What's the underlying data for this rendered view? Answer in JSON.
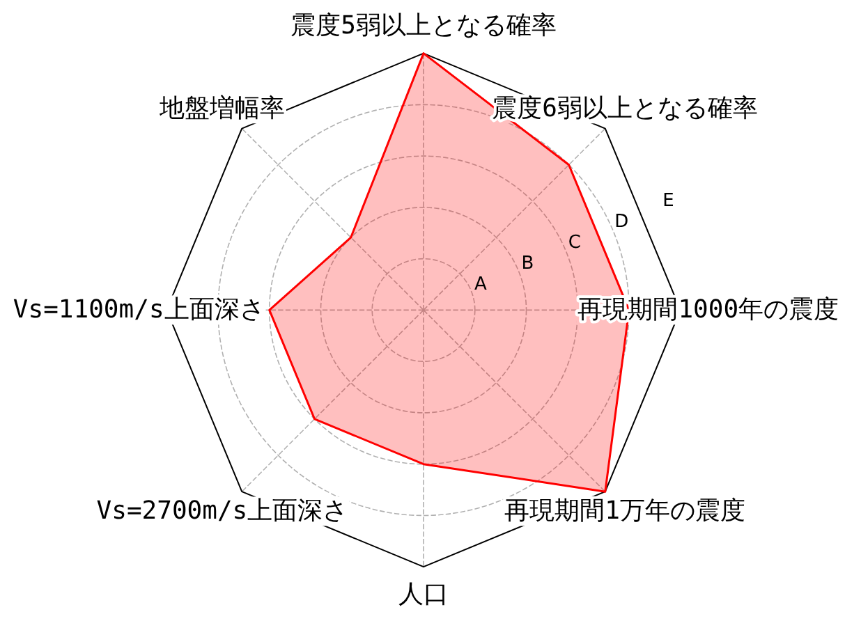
{
  "chart_data": {
    "type": "radar",
    "categories": [
      "震度5弱以上となる確率",
      "震度6弱以上となる確率",
      "再現期間1000年の震度",
      "再現期間1万年の震度",
      "人口",
      "Vs=2700m/s上面深さ",
      "Vs=1100m/s上面深さ",
      "地盤増幅率"
    ],
    "series": [
      {
        "color": "#ff0000",
        "values": [
          5,
          4,
          4,
          5,
          3,
          3,
          3,
          2
        ]
      }
    ],
    "ylim": [
      0,
      5
    ],
    "yticks": [
      {
        "value": 1,
        "label": "A"
      },
      {
        "value": 2,
        "label": "B"
      },
      {
        "value": 3,
        "label": "C"
      },
      {
        "value": 4,
        "label": "D"
      },
      {
        "value": 5,
        "label": "E"
      }
    ],
    "grid": true
  }
}
